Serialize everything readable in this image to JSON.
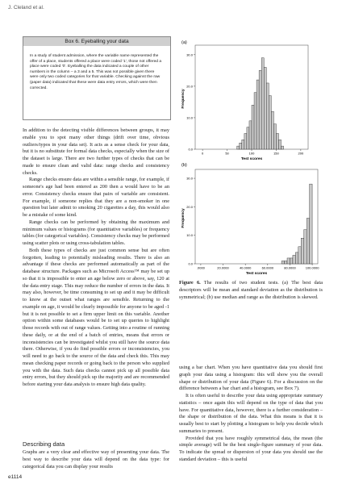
{
  "header": {
    "running_head": "J. Cleland et al.",
    "page_number": "e1114"
  },
  "box": {
    "title": "Box 6. Eyeballing your data",
    "text": "In a study of student admission, where the variable name represented the offer of a place, students offered a place were coded '1', those not offered a place were coded '0'. Eyeballing the data indicated a couple of other numbers in the column – a 3 and a 5. This was not possible given there were only two coded categories for that variable. Checking against the raw (paper data) indicated that these were data entry errors, which were then corrected."
  },
  "body_left": [
    "In addition to the detecting visible differences between groups, it may enable you to spot many other things (drift over time, obvious outliers/typos in your data set). It acts as a sense check for your data, but it is no substitute for formal data checks, especially when the size of the dataset is large. There are two further types of checks that can be made to ensure clean and valid data: range checks and consistency checks.",
    "Range checks ensure data are within a sensible range, for example, if someone's age had been entered as 200 then a would have to be an error. Consistency checks ensure that pairs of variable are consistent. For example, if someone replies that they are a non-smoker in one question but later admit to smoking 20 cigarettes a day, this would also be a mistake of some kind.",
    "Range checks can be performed by obtaining the maximum and minimum values or histograms (for quantitative variables) or frequency tables (for categorical variables). Consistency checks may be performed using scatter plots or using cross-tabulation tables.",
    "Both these types of checks are just common sense but are often forgotten, leading to potentially misleading results. There is also an advantage if these checks are performed automatically as part of the database structure. Packages such as Microsoft Access™ may be set up so that it is impossible to enter an age below zero or above, say, 120 at the data entry stage. This may reduce the number of errors in the data. It may also, however, be time consuming to set up and it may be difficult to know at the outset what ranges are sensible. Returning to the example on age, it would be clearly impossible for anyone to be aged -1 but it is not possible to set a firm upper limit on this variable. Another option within some databases would be to set up queries to highlight those records with out of range values. Getting into a routine of running these daily, or at the end of a batch of entries, means that errors or inconsistencies can be investigated whilst you still have the source data there. Otherwise, if you do find possible errors or inconsistencies, you will need to go back to the source of the data and check this. This may mean checking paper records or going back to the person who supplied you with the data. Such data checks cannot pick up all possible data entry errors, but they should pick up the majority and are recommended before starting your data analysis to ensure high data quality."
  ],
  "section": {
    "heading": "Describing data",
    "paragraphs": [
      "Graphs are a very clear and effective way of presenting your data. The best way to describe your data will depend on the data type: for categorical data you can display your results"
    ]
  },
  "figure": {
    "panels": [
      {
        "label": "(a)",
        "chart_data": {
          "type": "histogram",
          "xlabel": "Test scores",
          "ylabel": "Frequency",
          "color": "#c9c9c9",
          "bins": [
            70,
            75,
            80,
            85,
            90,
            95,
            100,
            105,
            110,
            115,
            120,
            125,
            130,
            135,
            140,
            145,
            150,
            155,
            160,
            165
          ],
          "values": [
            1,
            2,
            3,
            5,
            7,
            9,
            14,
            18,
            22,
            25,
            29,
            26,
            21,
            17,
            12,
            8,
            5,
            3,
            1
          ],
          "xlim": [
            -15,
            215
          ],
          "xticks": [
            0,
            50,
            100,
            150,
            200
          ],
          "ylim": [
            0,
            32
          ],
          "yticks": [
            {
              "value": 0,
              "label": "0.0"
            },
            {
              "value": 10,
              "label": "10.0"
            },
            {
              "value": 20,
              "label": "20.0"
            },
            {
              "value": 30,
              "label": "30.0"
            }
          ]
        }
      },
      {
        "label": "(b)",
        "chart_data": {
          "type": "histogram",
          "xlabel": "Test scores",
          "ylabel": "Frequency",
          "color": "#c9c9c9",
          "bins": [
            72.5,
            75,
            77.5,
            80,
            82.5,
            85,
            87.5,
            90,
            92.5,
            95,
            97.5,
            100
          ],
          "values": [
            1,
            1,
            2,
            2,
            3,
            4,
            6,
            9,
            12,
            16,
            28
          ],
          "xlim": [
            -5,
            105
          ],
          "xticks": [
            {
              "value": 0,
              "label": ".0000"
            },
            {
              "value": 20,
              "label": "20.0000"
            },
            {
              "value": 40,
              "label": "40.0000"
            },
            {
              "value": 60,
              "label": "60.0000"
            },
            {
              "value": 80,
              "label": "80.0000"
            },
            {
              "value": 100,
              "label": "100.0000"
            }
          ],
          "ylim": [
            0,
            32
          ],
          "yticks": [
            {
              "value": 0,
              "label": "0.0"
            },
            {
              "value": 10,
              "label": "10.0"
            },
            {
              "value": 20,
              "label": "20.0"
            },
            {
              "value": 30,
              "label": "30.0"
            }
          ]
        }
      }
    ],
    "caption_label": "Figure 6.",
    "caption_text": "The results of two student tests. (a) The best data descriptors will be mean and standard deviation as the distribution is symmetrical; (b) use median and range as the distribution is skewed."
  },
  "body_right": [
    "using a bar chart. When you have quantitative data you should first graph your data using a histogram: this will show you the overall shape or distribution of your data (Figure 6). For a discussion on the difference between a bar chart and a histogram, see Box 7).",
    "It is often useful to describe your data using appropriate summary statistics – once again this will depend on the type of data that you have. For quantitative data, however, there is a further consideration – the shape or distribution of the data. What this means is that it is usually best to start by plotting a histogram to help you decide which summaries to present.",
    "Provided that you have roughly symmetrical data, the mean (the simple average) will be the best single-figure summary of your data. To indicate the spread or dispersion of your data you should use the standard deviation – this is useful"
  ]
}
